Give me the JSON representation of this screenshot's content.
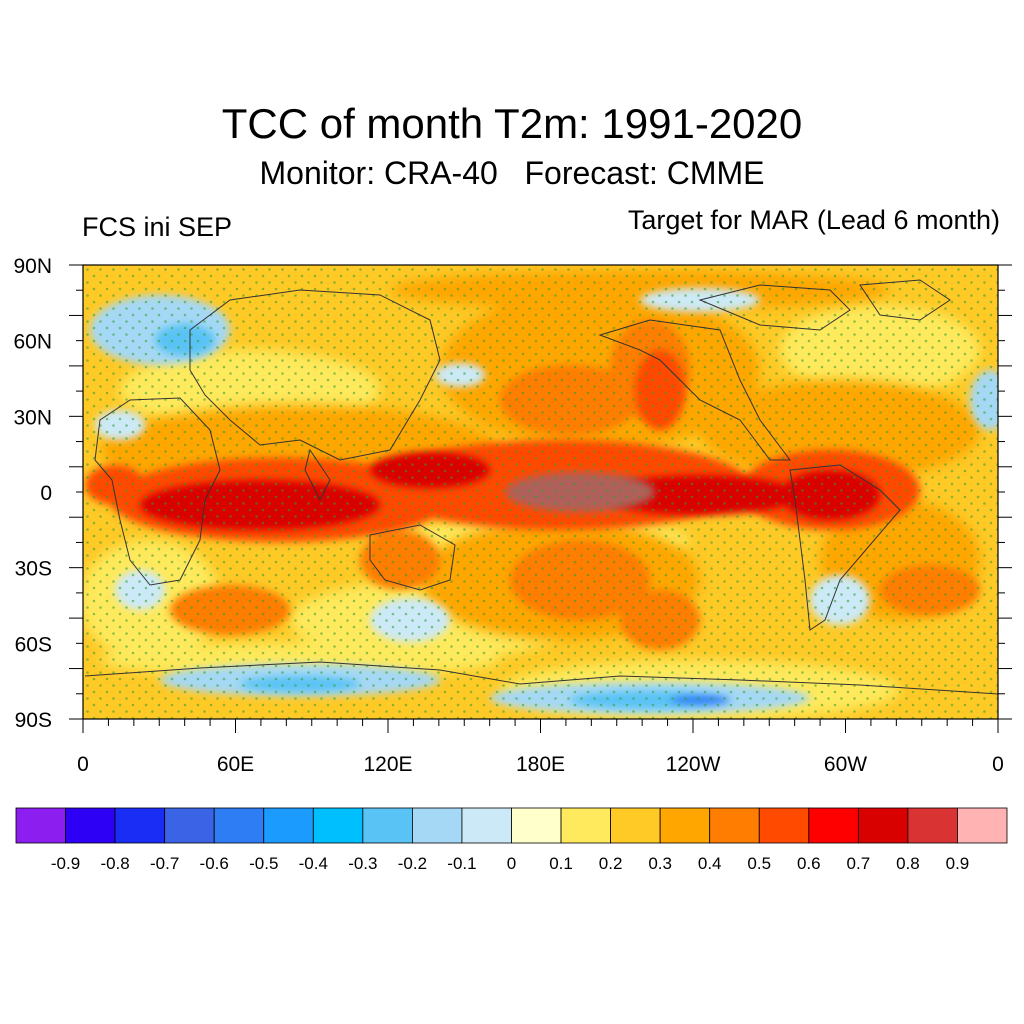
{
  "title": "TCC of month T2m: 1991-2020",
  "subtitle": "Monitor: CRA-40   Forecast: CMME",
  "left_label": "FCS ini SEP",
  "right_label": "Target for MAR (Lead 6 month)",
  "axes": {
    "lat_labels": [
      "90N",
      "60N",
      "30N",
      "0",
      "30S",
      "60S",
      "90S"
    ],
    "lon_labels": [
      "0",
      "60E",
      "120E",
      "180E",
      "120W",
      "60W",
      "0"
    ]
  },
  "colorbar": {
    "colors": [
      "#8c1ff0",
      "#2d00f5",
      "#1a2df5",
      "#3a63e6",
      "#2f7df5",
      "#1c9bff",
      "#00bfff",
      "#5ac3f5",
      "#a5d8f5",
      "#cce9f7",
      "#ffffcc",
      "#ffe95c",
      "#ffc926",
      "#ffa600",
      "#ff7d00",
      "#ff4a00",
      "#ff0000",
      "#d90000",
      "#d93333",
      "#ffb3b3"
    ],
    "labels": [
      "-0.9",
      "-0.8",
      "-0.7",
      "-0.6",
      "-0.5",
      "-0.4",
      "-0.3",
      "-0.2",
      "-0.1",
      "0",
      "0.1",
      "0.2",
      "0.3",
      "0.4",
      "0.5",
      "0.6",
      "0.7",
      "0.8",
      "0.9"
    ]
  },
  "colors": {
    "background_fill": "#ffc926",
    "stipple": "#2e9e2e",
    "coastline": "#333333"
  }
}
